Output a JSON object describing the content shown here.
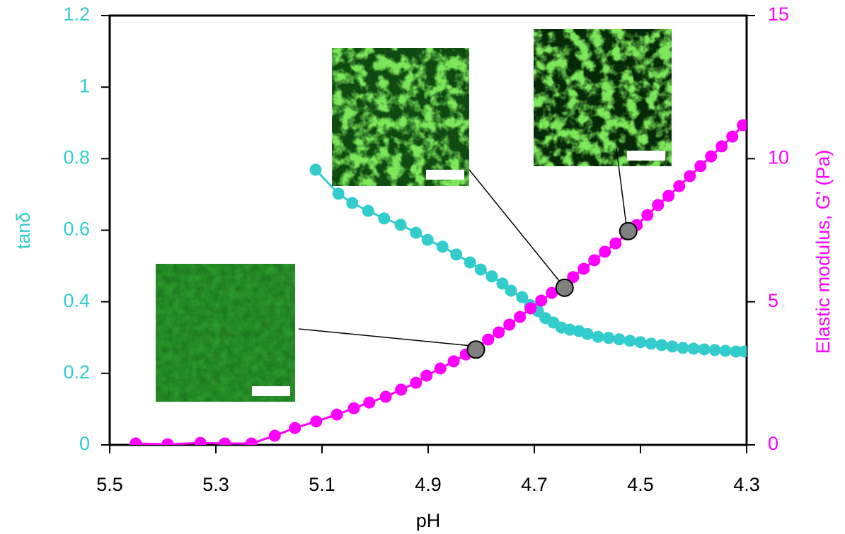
{
  "chart_data": {
    "type": "line",
    "xlabel": "pH",
    "ylabel": "tanδ",
    "y2label": "Elastic modulus, G' (Pa)",
    "xlim": [
      5.5,
      4.3
    ],
    "xticks": [
      5.5,
      5.3,
      5.1,
      4.9,
      4.7,
      4.5,
      4.3
    ],
    "ylim": [
      0,
      1.2
    ],
    "yticks": [
      0,
      0.2,
      0.4,
      0.6,
      0.8,
      1,
      1.2
    ],
    "y2lim": [
      0,
      15
    ],
    "y2ticks": [
      0,
      5,
      10,
      15
    ],
    "series": [
      {
        "name": "tanδ",
        "color": "#33cccc",
        "x": [
          5.112,
          5.069,
          5.043,
          5.013,
          4.983,
          4.952,
          4.923,
          4.901,
          4.873,
          4.847,
          4.821,
          4.801,
          4.78,
          4.76,
          4.744,
          4.723,
          4.708,
          4.693,
          4.679,
          4.664,
          4.649,
          4.633,
          4.616,
          4.6,
          4.58,
          4.56,
          4.54,
          4.52,
          4.5,
          4.48,
          4.46,
          4.44,
          4.42,
          4.4,
          4.38,
          4.36,
          4.34,
          4.32,
          4.304
        ],
        "values": [
          0.769,
          0.702,
          0.676,
          0.654,
          0.633,
          0.615,
          0.593,
          0.573,
          0.554,
          0.532,
          0.51,
          0.49,
          0.471,
          0.451,
          0.431,
          0.413,
          0.391,
          0.374,
          0.354,
          0.342,
          0.328,
          0.322,
          0.318,
          0.31,
          0.302,
          0.299,
          0.295,
          0.291,
          0.287,
          0.283,
          0.279,
          0.275,
          0.271,
          0.269,
          0.267,
          0.265,
          0.263,
          0.261,
          0.261
        ]
      },
      {
        "name": "Elastic modulus, G'",
        "color": "#ff00ff",
        "axis": "y2",
        "x": [
          5.451,
          5.391,
          5.329,
          5.283,
          5.233,
          5.189,
          5.151,
          5.111,
          5.072,
          5.04,
          5.011,
          4.98,
          4.951,
          4.923,
          4.903,
          4.877,
          4.852,
          4.829,
          4.807,
          4.787,
          4.767,
          4.747,
          4.727,
          4.707,
          4.687,
          4.667,
          4.647,
          4.627,
          4.607,
          4.587,
          4.567,
          4.547,
          4.527,
          4.507,
          4.487,
          4.467,
          4.447,
          4.427,
          4.407,
          4.387,
          4.367,
          4.347,
          4.327,
          4.307
        ],
        "values": [
          0.05,
          0.02,
          0.07,
          0.05,
          0.05,
          0.32,
          0.59,
          0.82,
          1.06,
          1.28,
          1.48,
          1.68,
          1.93,
          2.17,
          2.42,
          2.67,
          2.92,
          3.16,
          3.41,
          3.68,
          3.93,
          4.2,
          4.47,
          4.77,
          5.04,
          5.31,
          5.58,
          5.86,
          6.15,
          6.45,
          6.75,
          7.04,
          7.36,
          7.68,
          8.03,
          8.38,
          8.7,
          9.04,
          9.39,
          9.74,
          10.08,
          10.43,
          10.77,
          11.17
        ]
      }
    ],
    "markers": {
      "color": "#808080",
      "axis": "y2",
      "x": [
        4.81,
        4.643,
        4.523
      ],
      "values": [
        3.33,
        5.49,
        7.47
      ]
    }
  }
}
